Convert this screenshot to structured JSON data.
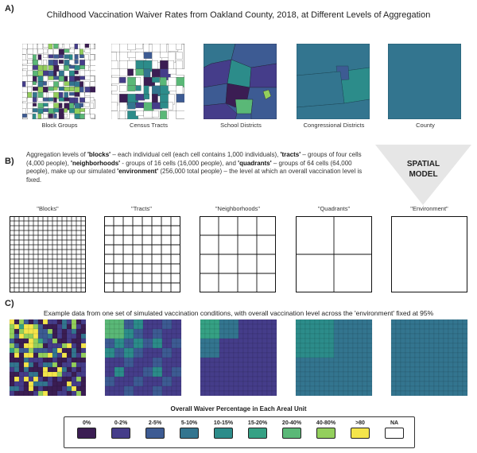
{
  "panels": {
    "a": "A)",
    "b": "B)",
    "c": "C)"
  },
  "panel_a": {
    "title": "Childhood Vaccination Waiver Rates from Oakland County, 2018, at Different Levels of Aggregation",
    "maps": [
      {
        "label": "Block Groups"
      },
      {
        "label": "Census Tracts"
      },
      {
        "label": "School Districts"
      },
      {
        "label": "Congressional Districts"
      },
      {
        "label": "County"
      }
    ]
  },
  "panel_b": {
    "text_parts": [
      "Aggregation levels of ",
      "'blocks'",
      " – each individual cell (each cell contains 1,000 individuals), ",
      "'tracts'",
      " – groups of four cells (4,000 people), ",
      "'neighborhoods'",
      " - groups of 16 cells (16,000 people), and ",
      "'quadrants'",
      " – groups of 64 cells (64,000 people), make up our simulated ",
      "'environment'",
      " (256,000 total people) – the level at which an overall vaccination level is fixed."
    ],
    "arrow_label_1": "SPATIAL",
    "arrow_label_2": "MODEL",
    "grids": [
      {
        "label": "\"Blocks\"",
        "divisions": 16
      },
      {
        "label": "\"Tracts\"",
        "divisions": 8
      },
      {
        "label": "\"Neighborhoods\"",
        "divisions": 4
      },
      {
        "label": "\"Quadrants\"",
        "divisions": 2
      },
      {
        "label": "\"Environment\"",
        "divisions": 1
      }
    ]
  },
  "panel_c": {
    "title": "Example data from one set of simulated vaccination conditions, with overall vaccination level across the 'environment' fixed at 95%",
    "legend_title": "Overall Waiver Percentage in Each Areal Unit",
    "legend": [
      {
        "label": "0%",
        "color": "#3b1d53"
      },
      {
        "label": "0-2%",
        "color": "#453d8a"
      },
      {
        "label": "2-5%",
        "color": "#3d5b93"
      },
      {
        "label": "5-10%",
        "color": "#33758f"
      },
      {
        "label": "10-15%",
        "color": "#2c8c8a"
      },
      {
        "label": "15-20%",
        "color": "#35a184"
      },
      {
        "label": "20-40%",
        "color": "#5ab877"
      },
      {
        "label": "40-80%",
        "color": "#93cf5c"
      },
      {
        "label": ">80",
        "color": "#f4e54b"
      },
      {
        "label": "NA",
        "color": "#ffffff"
      }
    ]
  }
}
